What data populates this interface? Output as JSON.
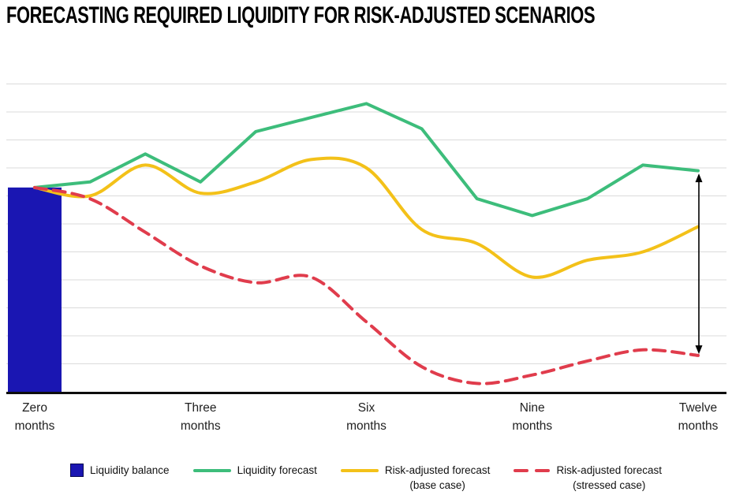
{
  "title": "FORECASTING REQUIRED LIQUIDITY FOR RISK-ADJUSTED SCENARIOS",
  "chart_data": {
    "type": "combo-bar-line",
    "x_unit": "months",
    "x_months_range": [
      0,
      12
    ],
    "x_tick_positions": [
      0,
      3,
      6,
      9,
      12
    ],
    "x_tick_labels": [
      [
        "Zero",
        "months"
      ],
      [
        "Three",
        "months"
      ],
      [
        "Six",
        "months"
      ],
      [
        "Nine",
        "months"
      ],
      [
        "Twelve",
        "months"
      ]
    ],
    "y_axis": {
      "tick_labels_visible": false,
      "gridlines": 11,
      "units_per_gridline": 10,
      "ylim": [
        0,
        112
      ],
      "baseline_value": 0
    },
    "bar": {
      "name": "Liquidity balance",
      "month": 0,
      "value": 73,
      "color": "#1A16B2"
    },
    "series": [
      {
        "name": "Liquidity forecast",
        "color": "#3DBD7B",
        "line_style": "solid",
        "smooth": false,
        "months": [
          0,
          1,
          2,
          3,
          4,
          5,
          6,
          7,
          8,
          9,
          10,
          11,
          12
        ],
        "values": [
          73,
          75,
          85,
          75,
          93,
          98,
          103,
          94,
          69,
          63,
          69,
          81,
          79
        ]
      },
      {
        "name": "Risk-adjusted forecast (base case)",
        "color": "#F3C119",
        "line_style": "solid",
        "smooth": true,
        "months": [
          0,
          1,
          2,
          3,
          4,
          5,
          6,
          7,
          8,
          9,
          10,
          11,
          12
        ],
        "values": [
          73,
          70,
          81,
          71,
          75,
          83,
          80,
          58,
          53,
          41,
          47,
          50,
          59
        ]
      },
      {
        "name": "Risk-adjusted forecast (stressed case)",
        "color": "#E03C4C",
        "line_style": "dashed",
        "smooth": true,
        "months": [
          0,
          1,
          2,
          3,
          4,
          5,
          6,
          7,
          8,
          9,
          10,
          11,
          12
        ],
        "values": [
          73,
          69,
          57,
          45,
          39,
          41,
          25,
          9,
          3,
          6,
          11,
          15,
          13
        ]
      }
    ],
    "annotation_arrow": {
      "month": 12,
      "from_value": 78,
      "to_value": 13.5,
      "style": "double-headed-vertical",
      "color": "#000000"
    },
    "gridline_color": "#DBDBDB",
    "axis_color": "#0D0D0D"
  },
  "legend": {
    "items": [
      {
        "swatch": "square",
        "color": "#1A16B2",
        "lines": [
          "Liquidity balance"
        ]
      },
      {
        "swatch": "line",
        "color": "#3DBD7B",
        "lines": [
          "Liquidity forecast"
        ]
      },
      {
        "swatch": "line",
        "color": "#F3C119",
        "lines": [
          "Risk-adjusted forecast",
          "(base case)"
        ]
      },
      {
        "swatch": "dashed-line",
        "color": "#E03C4C",
        "lines": [
          "Risk-adjusted forecast",
          "(stressed case)"
        ]
      }
    ]
  }
}
